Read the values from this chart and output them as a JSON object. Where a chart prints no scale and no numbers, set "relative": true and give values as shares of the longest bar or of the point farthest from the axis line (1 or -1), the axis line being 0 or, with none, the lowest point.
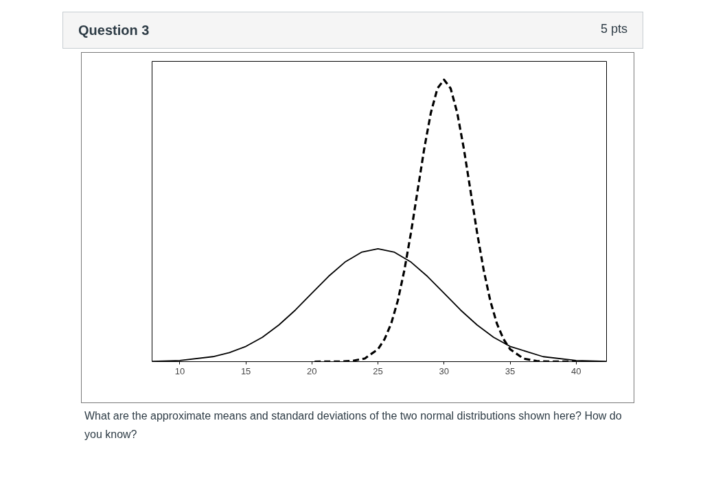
{
  "chart_data": {
    "type": "line",
    "title": "Question 3",
    "relative": true,
    "xlim": [
      7.9,
      42.3
    ],
    "xticks": [
      10,
      15,
      20,
      25,
      30,
      35,
      40
    ],
    "grid": false,
    "annotations": [
      "5 pts",
      "What are the approximate means and standard deviations of the two normal distributions shown here? How do you know?"
    ],
    "series": [
      {
        "color": "#000000",
        "line_style": "solid",
        "x": [
          7.9,
          10,
          12.5,
          13.75,
          15,
          16.25,
          17.5,
          18.75,
          20,
          21.25,
          22.5,
          23.75,
          25,
          26.25,
          27.5,
          28.75,
          30,
          31.25,
          32.5,
          33.75,
          35,
          37.5,
          40,
          42.3
        ],
        "values": [
          0.001,
          0.004,
          0.0176,
          0.0318,
          0.054,
          0.0865,
          0.13,
          0.183,
          0.243,
          0.302,
          0.353,
          0.388,
          0.4,
          0.388,
          0.353,
          0.302,
          0.243,
          0.183,
          0.13,
          0.0865,
          0.054,
          0.0176,
          0.004,
          0.001
        ]
      },
      {
        "color": "#000000",
        "line_style": "dashed",
        "x": [
          20.2,
          22,
          23,
          24,
          25,
          25.5,
          26,
          26.5,
          27,
          27.5,
          28,
          28.5,
          29,
          29.5,
          30,
          30.5,
          31,
          31.5,
          32,
          32.5,
          33,
          33.5,
          34,
          34.5,
          35,
          36,
          37,
          38,
          40
        ],
        "values": [
          0,
          0.0003,
          0.0022,
          0.011,
          0.044,
          0.08,
          0.135,
          0.216,
          0.325,
          0.458,
          0.607,
          0.755,
          0.882,
          0.969,
          1,
          0.969,
          0.882,
          0.755,
          0.607,
          0.458,
          0.325,
          0.216,
          0.135,
          0.08,
          0.044,
          0.011,
          0.0022,
          0.0003,
          0
        ]
      }
    ]
  }
}
